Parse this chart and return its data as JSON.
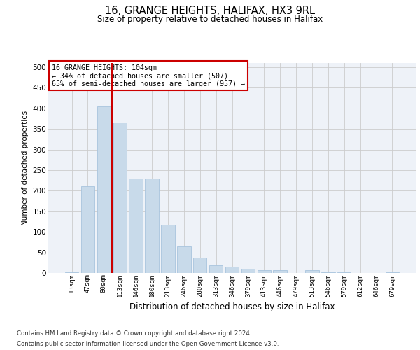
{
  "title1": "16, GRANGE HEIGHTS, HALIFAX, HX3 9RL",
  "title2": "Size of property relative to detached houses in Halifax",
  "xlabel": "Distribution of detached houses by size in Halifax",
  "ylabel": "Number of detached properties",
  "bar_color": "#c8daea",
  "bar_edge_color": "#a8c4de",
  "background_color": "#eef2f8",
  "grid_color": "#cccccc",
  "categories": [
    "13sqm",
    "47sqm",
    "80sqm",
    "113sqm",
    "146sqm",
    "180sqm",
    "213sqm",
    "246sqm",
    "280sqm",
    "313sqm",
    "346sqm",
    "379sqm",
    "413sqm",
    "446sqm",
    "479sqm",
    "513sqm",
    "546sqm",
    "579sqm",
    "612sqm",
    "646sqm",
    "679sqm"
  ],
  "values": [
    2,
    211,
    405,
    365,
    229,
    229,
    117,
    64,
    38,
    18,
    16,
    10,
    7,
    7,
    0,
    7,
    1,
    1,
    0,
    0,
    2
  ],
  "vline_x": 2.5,
  "vline_color": "#cc0000",
  "annotation_text": "16 GRANGE HEIGHTS: 104sqm\n← 34% of detached houses are smaller (507)\n65% of semi-detached houses are larger (957) →",
  "annotation_box_color": "#ffffff",
  "annotation_box_edge": "#cc0000",
  "footnote1": "Contains HM Land Registry data © Crown copyright and database right 2024.",
  "footnote2": "Contains public sector information licensed under the Open Government Licence v3.0.",
  "ylim": [
    0,
    510
  ],
  "yticks": [
    0,
    50,
    100,
    150,
    200,
    250,
    300,
    350,
    400,
    450,
    500
  ]
}
